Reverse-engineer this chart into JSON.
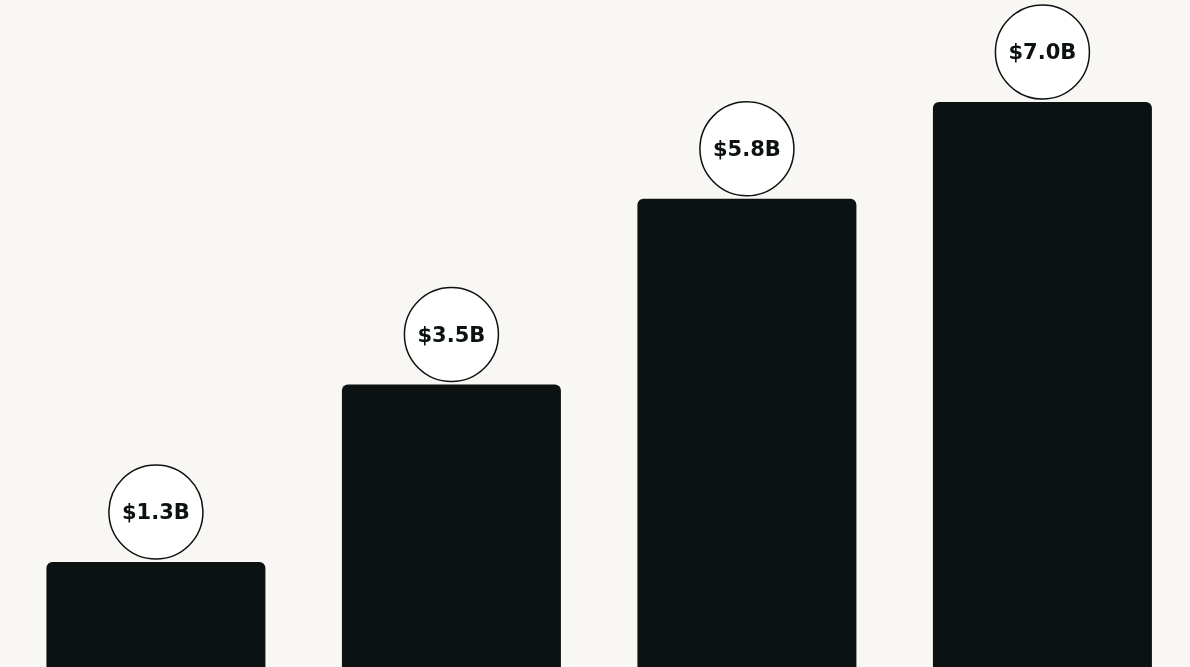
{
  "chart_data": {
    "type": "bar",
    "categories": [
      null,
      null,
      null,
      null
    ],
    "values": [
      1.3,
      3.5,
      5.8,
      7.0
    ],
    "value_labels": [
      "$1.3B",
      "$3.5B",
      "$5.8B",
      "$7.0B"
    ],
    "color": "#0c1212",
    "grid": false,
    "legend": false,
    "tick_labels": false
  }
}
